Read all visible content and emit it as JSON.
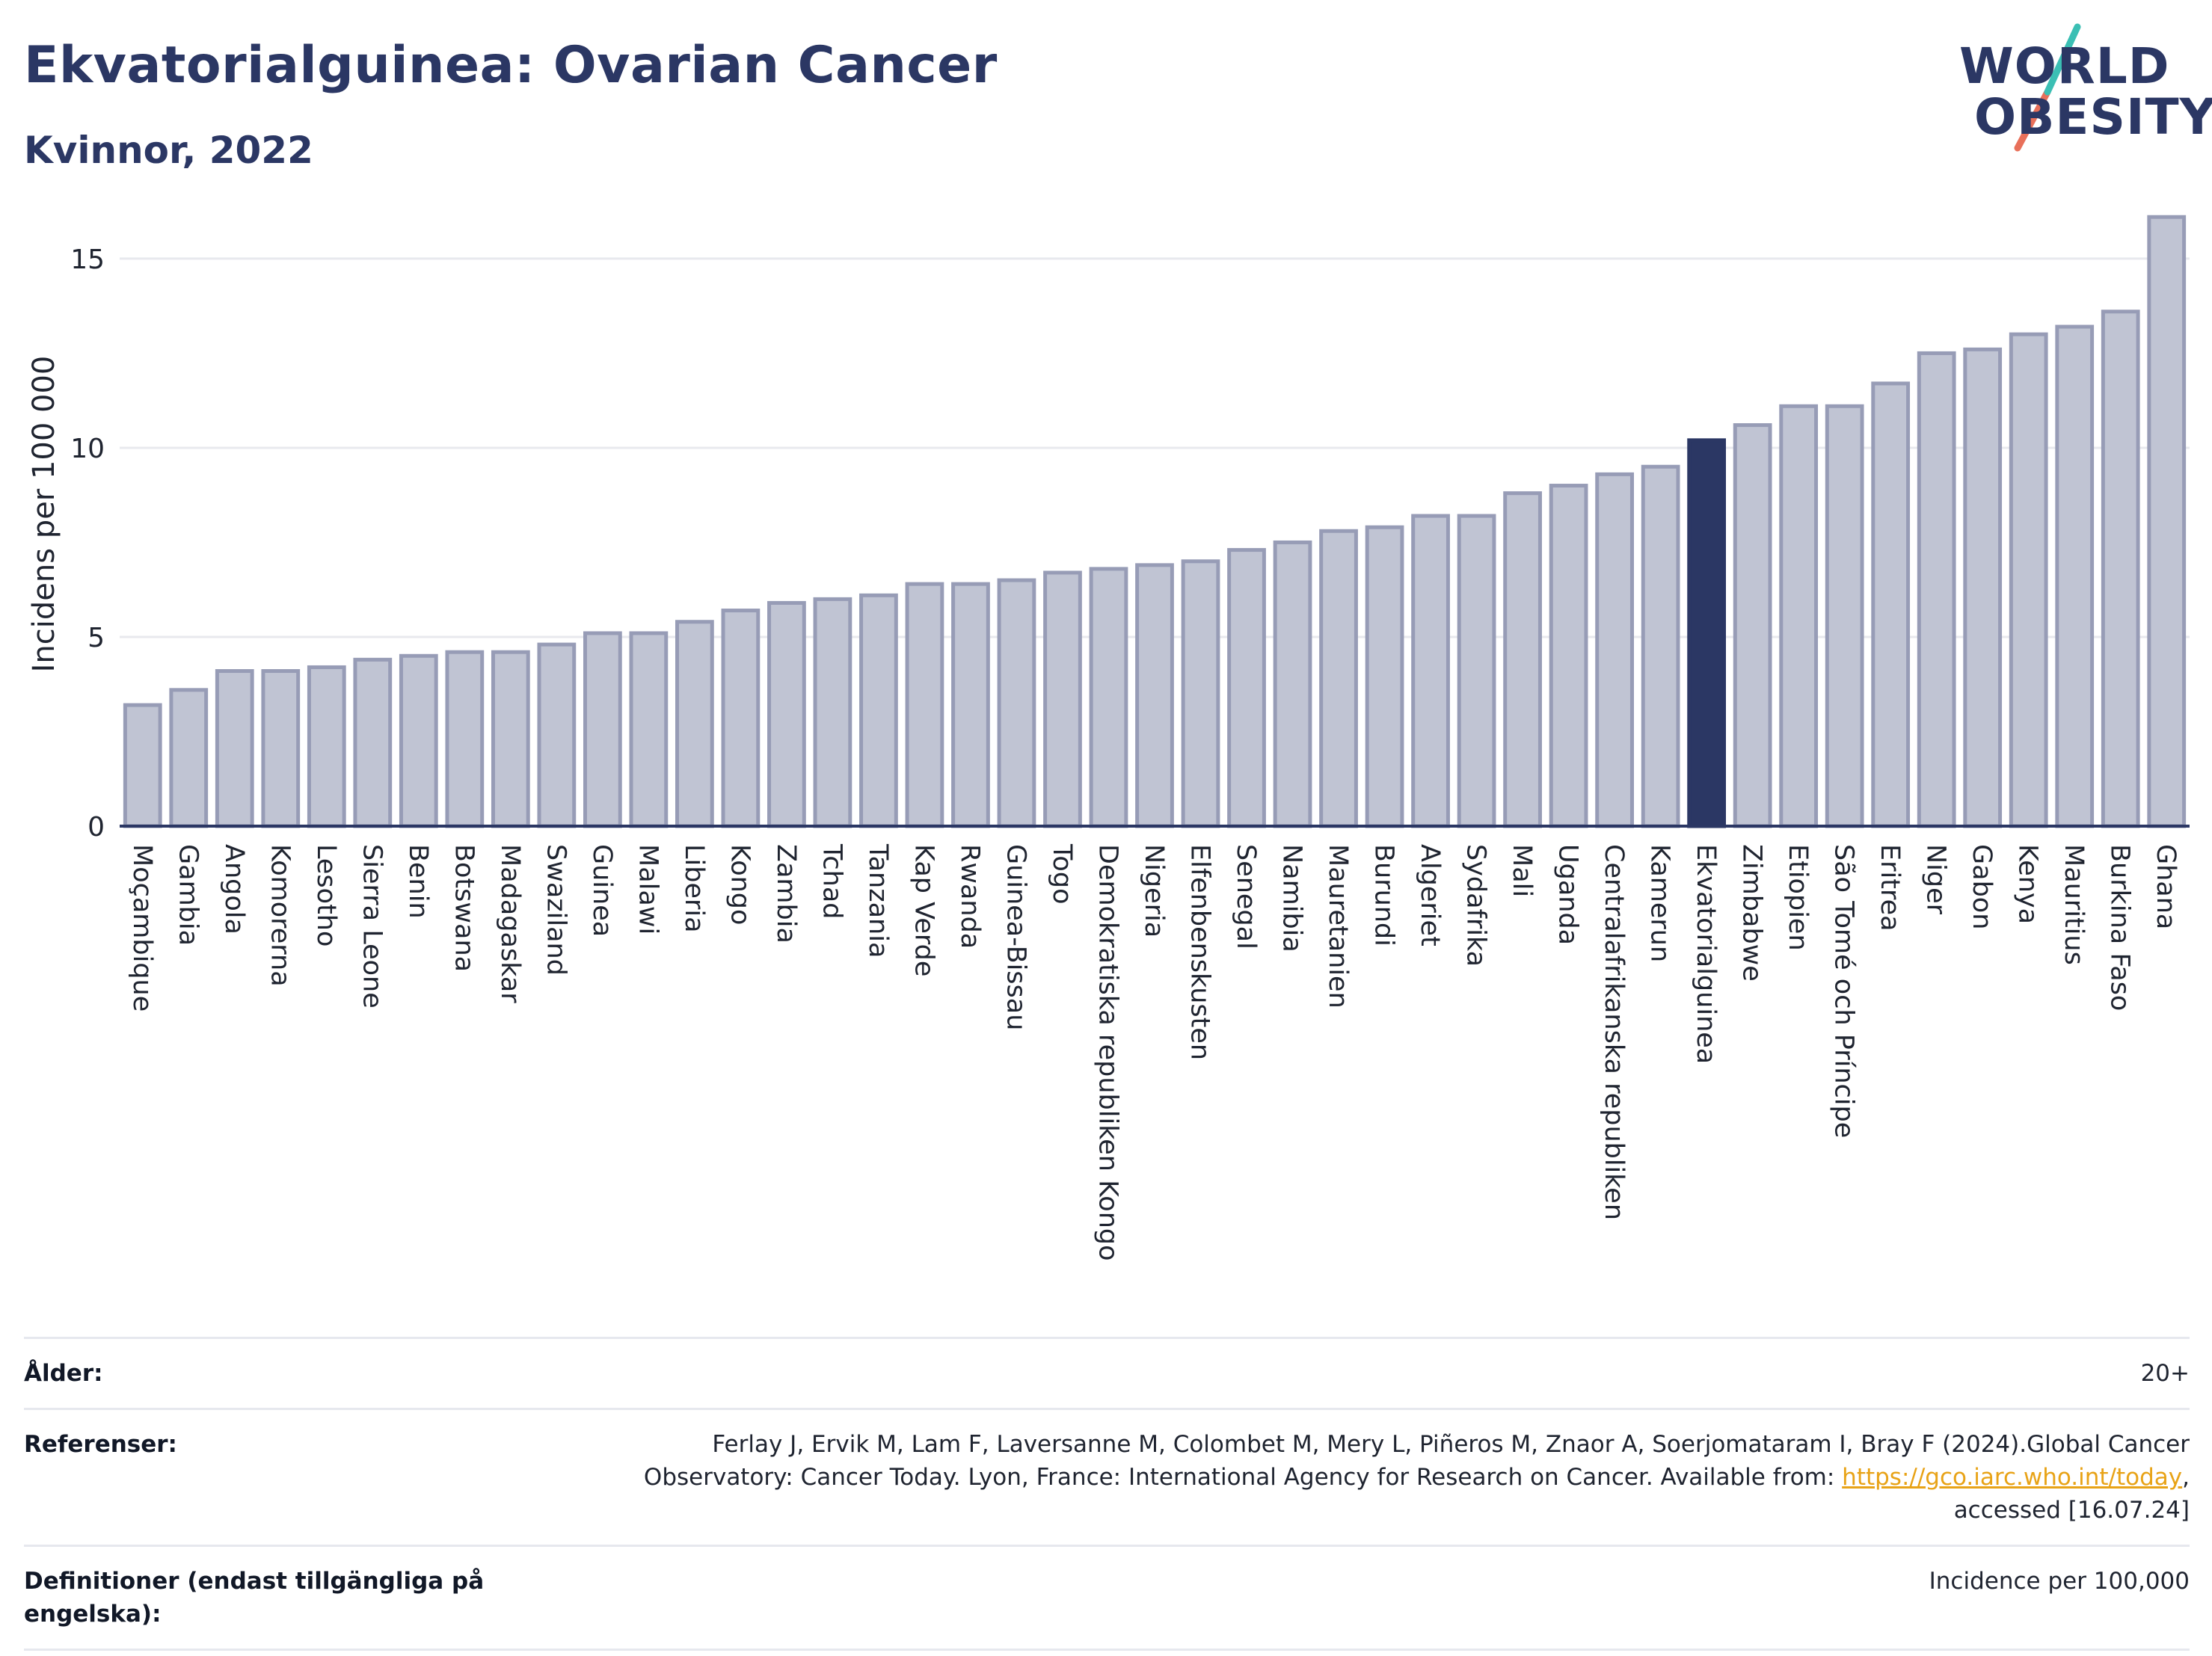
{
  "header": {
    "title": "Ekvatorialguinea: Ovarian Cancer",
    "subtitle": "Kvinnor, 2022"
  },
  "logo": {
    "line1": "WORLD",
    "line2": "OBESITY",
    "accent_teal": "#3bbfb4",
    "accent_coral": "#e8705a"
  },
  "colors": {
    "bar": "#c0c4d3",
    "bar_edge": "#979cb6",
    "highlight": "#2b3764",
    "grid": "#e8e9ee",
    "axis": "#2b3764"
  },
  "chart_data": {
    "type": "bar",
    "title": "Ekvatorialguinea: Ovarian Cancer",
    "subtitle": "Kvinnor, 2022",
    "ylabel": "Incidens per 100 000",
    "xlabel": "",
    "ylim": [
      0,
      16.5
    ],
    "yticks": [
      0,
      5,
      10,
      15
    ],
    "grid": true,
    "highlight": "Ekvatorialguinea",
    "categories": [
      "Moçambique",
      "Gambia",
      "Angola",
      "Komorerna",
      "Lesotho",
      "Sierra Leone",
      "Benin",
      "Botswana",
      "Madagaskar",
      "Swaziland",
      "Guinea",
      "Malawi",
      "Liberia",
      "Kongo",
      "Zambia",
      "Tchad",
      "Tanzania",
      "Kap Verde",
      "Rwanda",
      "Guinea-Bissau",
      "Togo",
      "Demokratiska republiken Kongo",
      "Nigeria",
      "Elfenbenskusten",
      "Senegal",
      "Namibia",
      "Mauretanien",
      "Burundi",
      "Algeriet",
      "Sydafrika",
      "Mali",
      "Uganda",
      "Centralafrikanska republiken",
      "Kamerun",
      "Ekvatorialguinea",
      "Zimbabwe",
      "Etiopien",
      "São Tomé och Príncipe",
      "Eritrea",
      "Niger",
      "Gabon",
      "Kenya",
      "Mauritius",
      "Burkina Faso",
      "Ghana"
    ],
    "values": [
      3.2,
      3.6,
      4.1,
      4.1,
      4.2,
      4.4,
      4.5,
      4.6,
      4.6,
      4.8,
      5.1,
      5.1,
      5.4,
      5.7,
      5.9,
      6.0,
      6.1,
      6.4,
      6.4,
      6.5,
      6.7,
      6.8,
      6.9,
      7.0,
      7.3,
      7.5,
      7.8,
      7.9,
      8.2,
      8.2,
      8.8,
      9.0,
      9.3,
      9.5,
      10.2,
      10.6,
      11.1,
      11.1,
      11.7,
      12.5,
      12.6,
      13.0,
      13.2,
      13.6,
      16.1
    ]
  },
  "footer": {
    "rows": [
      {
        "label": "Ålder:",
        "value": "20+"
      },
      {
        "label": "Referenser:",
        "value": "Ferlay J, Ervik M, Lam F, Laversanne M, Colombet M, Mery L, Piñeros M, Znaor A, Soerjomataram I, Bray F (2024).Global Cancer Observatory: Cancer Today. Lyon, France: International Agency for Research on Cancer. Available from: ",
        "link": "https://gco.iarc.who.int/today",
        "suffix": ", accessed [16.07.24]"
      },
      {
        "label": "Definitioner (endast tillgängliga på engelska):",
        "value": "Incidence per 100,000"
      }
    ]
  }
}
